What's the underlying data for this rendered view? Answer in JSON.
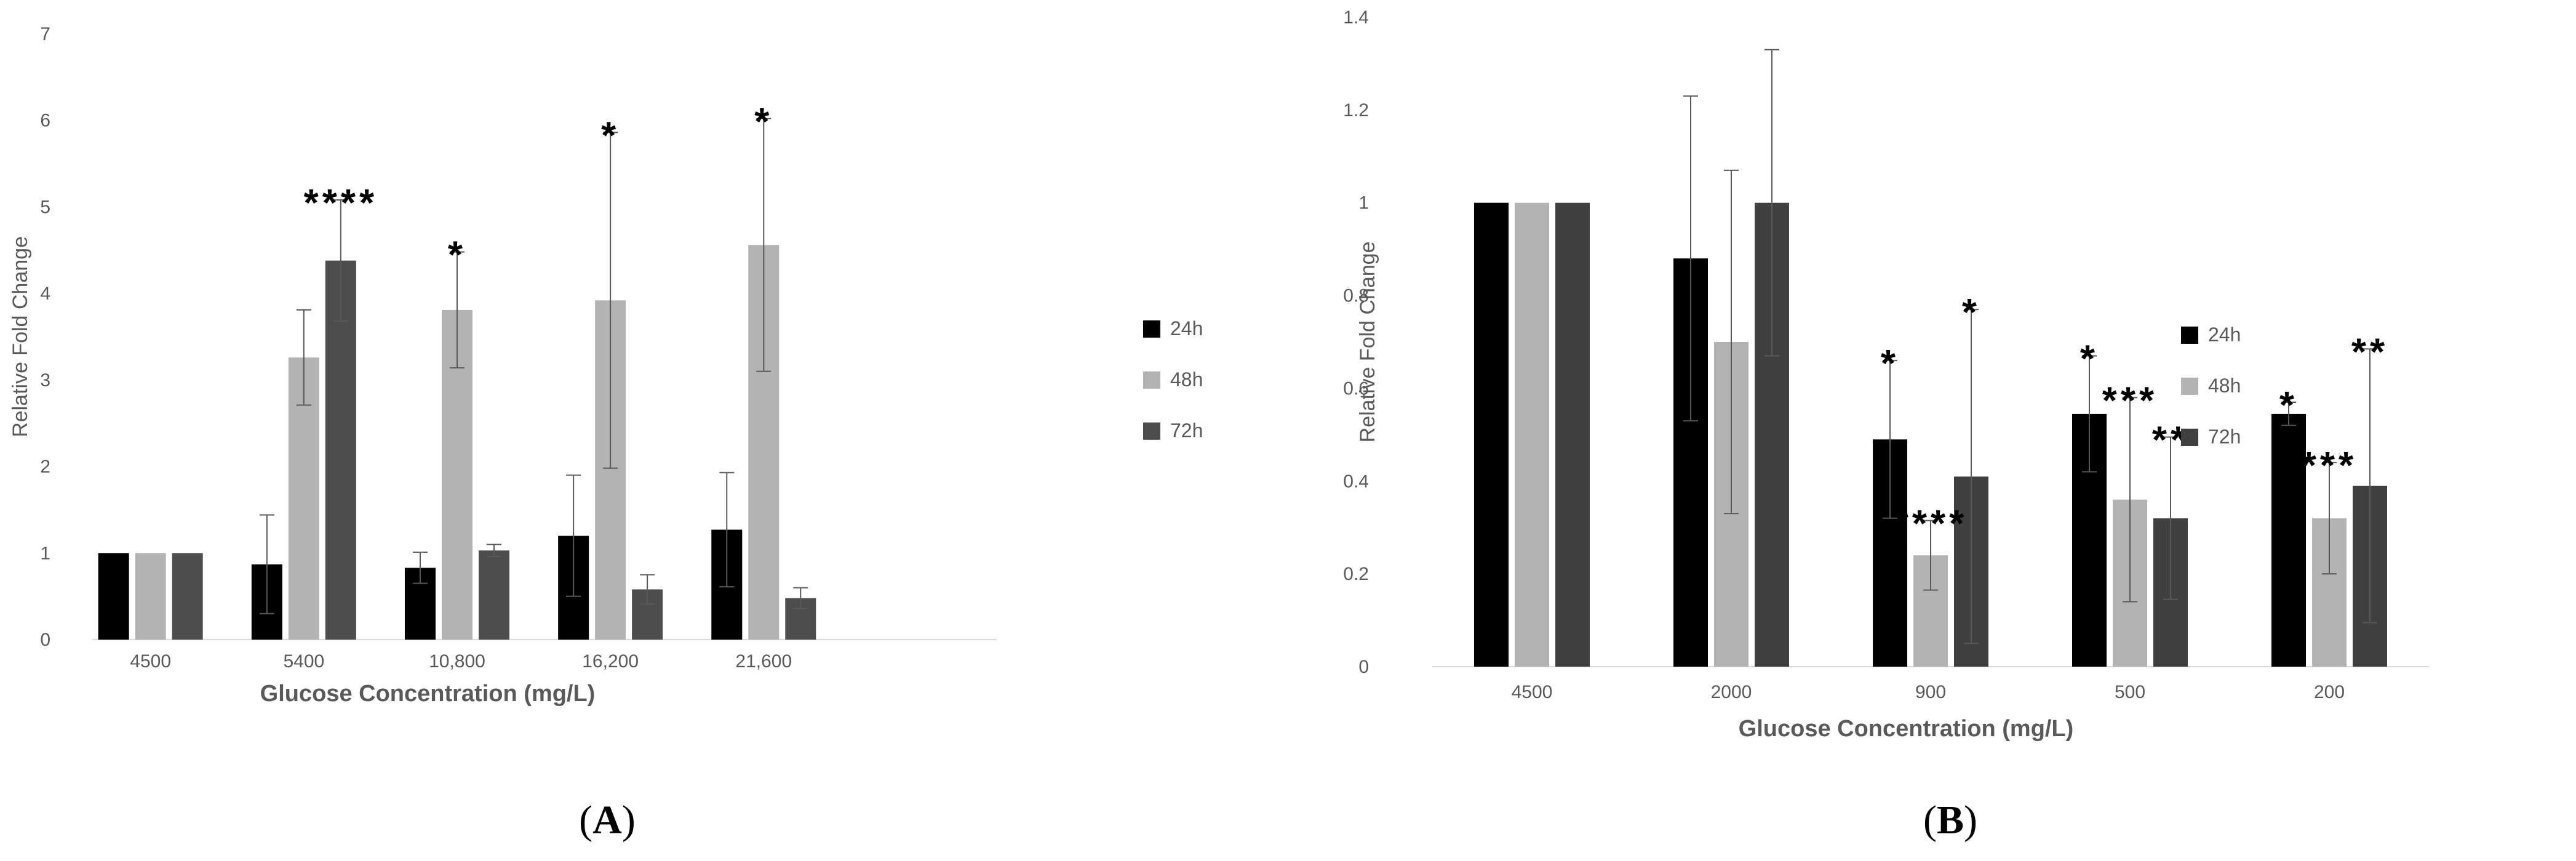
{
  "chart_data": [
    {
      "type": "bar",
      "panel_label": {
        "open": "(",
        "letter": "A",
        "close": ")"
      },
      "xlabel": "Glucose Concentration (mg/L)",
      "ylabel": "Relative Fold Change",
      "ylim": [
        0,
        7
      ],
      "yticks": [
        0,
        1,
        2,
        3,
        4,
        5,
        6,
        7
      ],
      "grid": false,
      "legend_position": "right",
      "categories": [
        "4500",
        "5400",
        "10,800",
        "16,200",
        "21,600"
      ],
      "series": [
        {
          "name": "24h",
          "color": "#000000",
          "values": [
            1.0,
            0.87,
            0.83,
            1.2,
            1.27
          ],
          "errors": [
            0,
            0.57,
            0.18,
            0.7,
            0.66
          ],
          "significance": [
            "",
            "",
            "",
            "",
            ""
          ]
        },
        {
          "name": "48h",
          "color": "#b3b3b3",
          "values": [
            1.0,
            3.26,
            3.81,
            3.92,
            4.56
          ],
          "errors": [
            0,
            0.55,
            0.67,
            1.94,
            1.46
          ],
          "significance": [
            "",
            "",
            "*",
            "*",
            "*"
          ]
        },
        {
          "name": "72h",
          "color": "#4d4d4d",
          "values": [
            1.0,
            4.38,
            1.03,
            0.58,
            0.48
          ],
          "errors": [
            0,
            0.7,
            0.07,
            0.17,
            0.12
          ],
          "significance": [
            "",
            "****",
            "",
            "",
            ""
          ]
        }
      ]
    },
    {
      "type": "bar",
      "panel_label": {
        "open": "(",
        "letter": "B",
        "close": ")"
      },
      "xlabel": "Glucose Concentration (mg/L)",
      "ylabel": "Relative Fold Change",
      "ylim": [
        0,
        1.4
      ],
      "yticks": [
        "0",
        "0.2",
        "0.4",
        "0.6",
        "0.8",
        "1",
        "1.2",
        "1.4"
      ],
      "grid": false,
      "legend_position": "right",
      "categories": [
        "4500",
        "2000",
        "900",
        "500",
        "200"
      ],
      "series": [
        {
          "name": "24h",
          "color": "#000000",
          "values": [
            1.0,
            0.88,
            0.49,
            0.545,
            0.545
          ],
          "errors": [
            0,
            0.35,
            0.17,
            0.125,
            0.025
          ],
          "significance": [
            "",
            "",
            "*",
            "*",
            "*"
          ]
        },
        {
          "name": "48h",
          "color": "#b3b3b3",
          "values": [
            1.0,
            0.7,
            0.24,
            0.36,
            0.32
          ],
          "errors": [
            0,
            0.37,
            0.075,
            0.22,
            0.12
          ],
          "significance": [
            "",
            "",
            "****",
            "***",
            "***"
          ]
        },
        {
          "name": "72h",
          "color": "#404040",
          "values": [
            1.0,
            1.0,
            0.41,
            0.32,
            0.39
          ],
          "errors": [
            0,
            0.33,
            0.36,
            0.175,
            0.295
          ],
          "significance": [
            "",
            "",
            "*",
            "**",
            "**"
          ]
        }
      ]
    }
  ]
}
